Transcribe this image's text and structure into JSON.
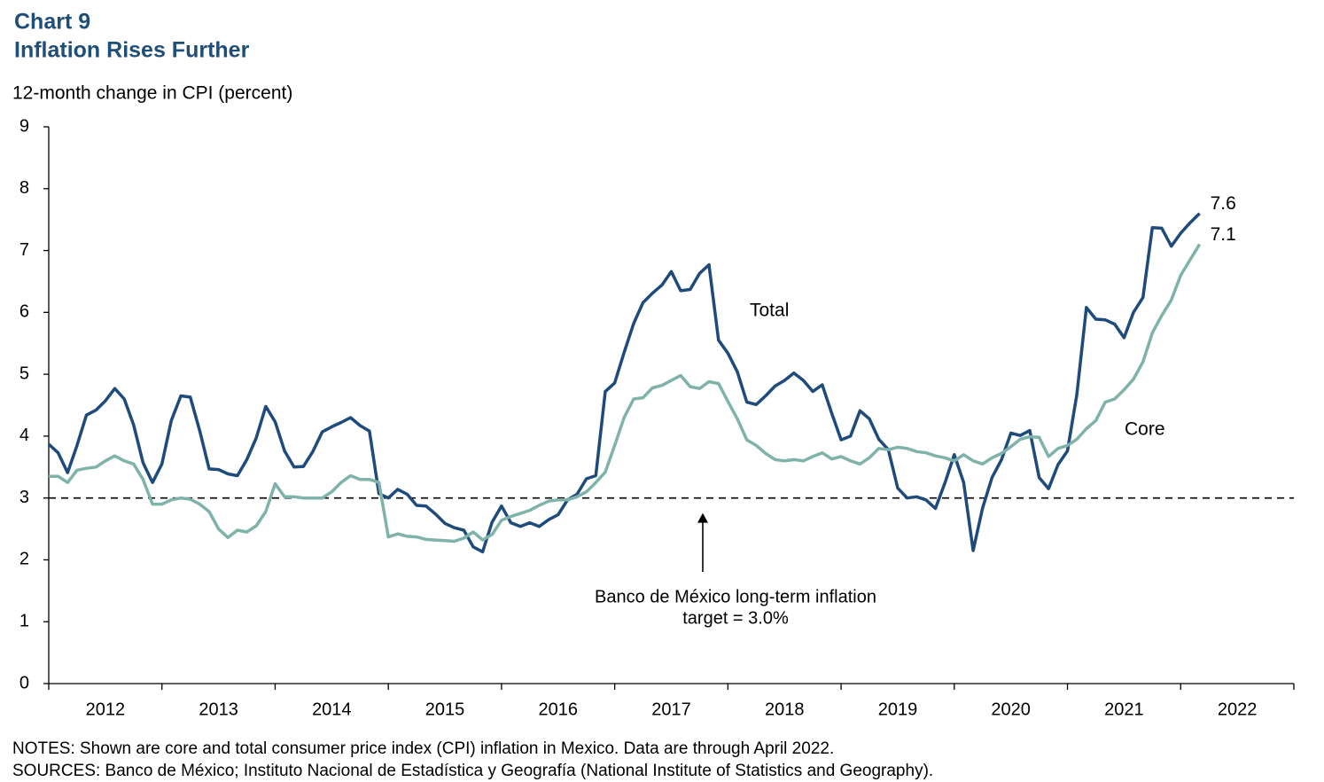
{
  "chart_data": {
    "type": "line",
    "title": "Chart 9",
    "subtitle": "Inflation Rises Further",
    "y_label": "12-month change in CPI (percent)",
    "notes": [
      "NOTES: Shown are core and total consumer price index (CPI) inflation in Mexico. Data are through April 2022.",
      "SOURCES: Banco de México; Instituto Nacional de Estadística y Geografía (National Institute of Statistics and Geography)."
    ],
    "x": [
      2012,
      2012.083,
      2012.167,
      2012.25,
      2012.333,
      2012.417,
      2012.5,
      2012.583,
      2012.667,
      2012.75,
      2012.833,
      2012.917,
      2013,
      2013.083,
      2013.167,
      2013.25,
      2013.333,
      2013.417,
      2013.5,
      2013.583,
      2013.667,
      2013.75,
      2013.833,
      2013.917,
      2014,
      2014.083,
      2014.167,
      2014.25,
      2014.333,
      2014.417,
      2014.5,
      2014.583,
      2014.667,
      2014.75,
      2014.833,
      2014.917,
      2015,
      2015.083,
      2015.167,
      2015.25,
      2015.333,
      2015.417,
      2015.5,
      2015.583,
      2015.667,
      2015.75,
      2015.833,
      2015.917,
      2016,
      2016.083,
      2016.167,
      2016.25,
      2016.333,
      2016.417,
      2016.5,
      2016.583,
      2016.667,
      2016.75,
      2016.833,
      2016.917,
      2017,
      2017.083,
      2017.167,
      2017.25,
      2017.333,
      2017.417,
      2017.5,
      2017.583,
      2017.667,
      2017.75,
      2017.833,
      2017.917,
      2018,
      2018.083,
      2018.167,
      2018.25,
      2018.333,
      2018.417,
      2018.5,
      2018.583,
      2018.667,
      2018.75,
      2018.833,
      2018.917,
      2019,
      2019.083,
      2019.167,
      2019.25,
      2019.333,
      2019.417,
      2019.5,
      2019.583,
      2019.667,
      2019.75,
      2019.833,
      2019.917,
      2020,
      2020.083,
      2020.167,
      2020.25,
      2020.333,
      2020.417,
      2020.5,
      2020.583,
      2020.667,
      2020.75,
      2020.833,
      2020.917,
      2021,
      2021.083,
      2021.167,
      2021.25,
      2021.333,
      2021.417,
      2021.5,
      2021.583,
      2021.667,
      2021.75,
      2021.833,
      2021.917,
      2022,
      2022.083,
      2022.167
    ],
    "series": [
      {
        "name": "Total",
        "color": "#1f4a7c",
        "values": [
          3.87,
          3.73,
          3.41,
          3.85,
          4.34,
          4.42,
          4.57,
          4.77,
          4.6,
          4.18,
          3.57,
          3.25,
          3.55,
          4.25,
          4.65,
          4.63,
          4.09,
          3.47,
          3.46,
          3.39,
          3.36,
          3.62,
          3.97,
          4.48,
          4.23,
          3.76,
          3.5,
          3.51,
          3.75,
          4.07,
          4.15,
          4.22,
          4.3,
          4.17,
          4.08,
          3.07,
          3.0,
          3.14,
          3.06,
          2.88,
          2.87,
          2.74,
          2.59,
          2.52,
          2.48,
          2.21,
          2.13,
          2.61,
          2.87,
          2.6,
          2.54,
          2.6,
          2.54,
          2.65,
          2.73,
          2.97,
          3.06,
          3.31,
          3.36,
          4.72,
          4.86,
          5.35,
          5.82,
          6.16,
          6.31,
          6.44,
          6.66,
          6.35,
          6.37,
          6.63,
          6.77,
          5.55,
          5.34,
          5.04,
          4.55,
          4.51,
          4.65,
          4.81,
          4.9,
          5.02,
          4.9,
          4.72,
          4.83,
          4.37,
          3.94,
          4.0,
          4.41,
          4.28,
          3.95,
          3.78,
          3.16,
          3.0,
          3.02,
          2.97,
          2.83,
          3.24,
          3.7,
          3.25,
          2.15,
          2.84,
          3.33,
          3.62,
          4.05,
          4.01,
          4.09,
          3.33,
          3.15,
          3.54,
          3.76,
          4.67,
          6.08,
          5.89,
          5.88,
          5.81,
          5.59,
          6.0,
          6.24,
          7.37,
          7.36,
          7.07,
          7.28,
          7.45,
          7.6
        ]
      },
      {
        "name": "Core",
        "color": "#7fb2a9",
        "values": [
          3.35,
          3.35,
          3.25,
          3.45,
          3.48,
          3.5,
          3.6,
          3.68,
          3.6,
          3.55,
          3.3,
          2.9,
          2.9,
          2.97,
          3.0,
          2.98,
          2.9,
          2.78,
          2.5,
          2.36,
          2.48,
          2.45,
          2.55,
          2.78,
          3.23,
          3.02,
          3.02,
          3.0,
          3.0,
          3.0,
          3.1,
          3.25,
          3.36,
          3.3,
          3.3,
          3.25,
          2.37,
          2.42,
          2.38,
          2.37,
          2.33,
          2.32,
          2.31,
          2.3,
          2.35,
          2.45,
          2.32,
          2.41,
          2.64,
          2.7,
          2.75,
          2.8,
          2.88,
          2.95,
          2.97,
          2.97,
          3.02,
          3.1,
          3.25,
          3.42,
          3.85,
          4.3,
          4.6,
          4.62,
          4.78,
          4.82,
          4.9,
          4.98,
          4.8,
          4.77,
          4.88,
          4.85,
          4.56,
          4.28,
          3.94,
          3.85,
          3.72,
          3.62,
          3.6,
          3.62,
          3.6,
          3.67,
          3.73,
          3.63,
          3.67,
          3.6,
          3.55,
          3.65,
          3.8,
          3.78,
          3.82,
          3.8,
          3.75,
          3.73,
          3.68,
          3.65,
          3.6,
          3.7,
          3.6,
          3.55,
          3.65,
          3.72,
          3.83,
          3.95,
          3.99,
          3.98,
          3.67,
          3.8,
          3.85,
          3.95,
          4.12,
          4.25,
          4.55,
          4.6,
          4.75,
          4.92,
          5.2,
          5.67,
          5.95,
          6.2,
          6.6,
          6.85,
          7.1
        ]
      }
    ],
    "reference_line": {
      "value": 3,
      "annotation": [
        "Banco de México long-term inflation",
        "target = 3.0%"
      ]
    },
    "xlim": [
      2012,
      2023
    ],
    "xticks": [
      2012,
      2013,
      2014,
      2015,
      2016,
      2017,
      2018,
      2019,
      2020,
      2021,
      2022
    ],
    "ylim": [
      0,
      9
    ],
    "yticks": [
      0,
      1,
      2,
      3,
      4,
      5,
      6,
      7,
      8,
      9
    ],
    "grid": false
  }
}
